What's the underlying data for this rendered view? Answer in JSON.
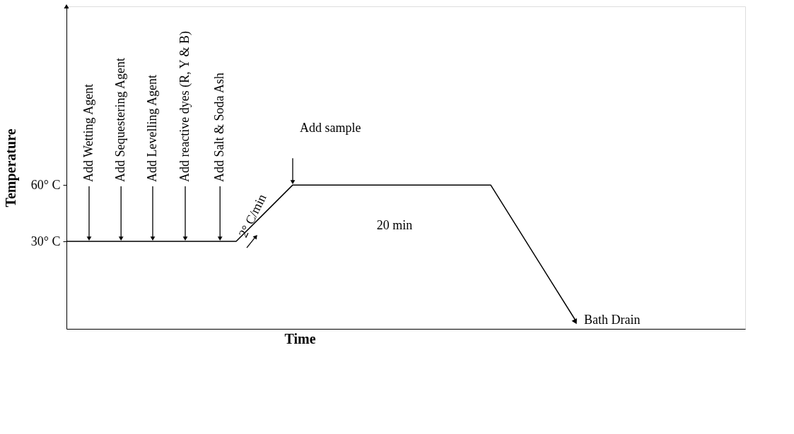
{
  "chart_data": {
    "type": "line",
    "xlabel": "Time",
    "ylabel": "Temperature",
    "categories": [
      null,
      null,
      null,
      null,
      null,
      null,
      null,
      null,
      null,
      null,
      null,
      null,
      null,
      null,
      null,
      null,
      null,
      null,
      null,
      null,
      null,
      null,
      null,
      null,
      null
    ],
    "series": [
      {
        "color": "#000000",
        "values": [
          30,
          30,
          30,
          30,
          30,
          30,
          30,
          45,
          60,
          60,
          60,
          60,
          60,
          60,
          60,
          60,
          36,
          12,
          -12,
          null,
          null,
          null,
          null,
          null,
          null
        ]
      }
    ],
    "ylim": [
      -16.5,
      155
    ],
    "yticks": [
      {
        "value": 30,
        "label": "30° C"
      },
      {
        "value": 60,
        "label": "60° C"
      }
    ],
    "tick_labels": "y",
    "grid": false,
    "marker": "none",
    "line_style": "solid",
    "annotations": [
      "Add Wetting Agent",
      "Add Sequestering Agent",
      "Add Levelling Agent",
      "Add reactive dyes (R, Y & B)",
      "Add Salt & Soda Ash",
      "Add sample",
      "20 min",
      "2° C/min",
      "Bath Drain"
    ]
  }
}
